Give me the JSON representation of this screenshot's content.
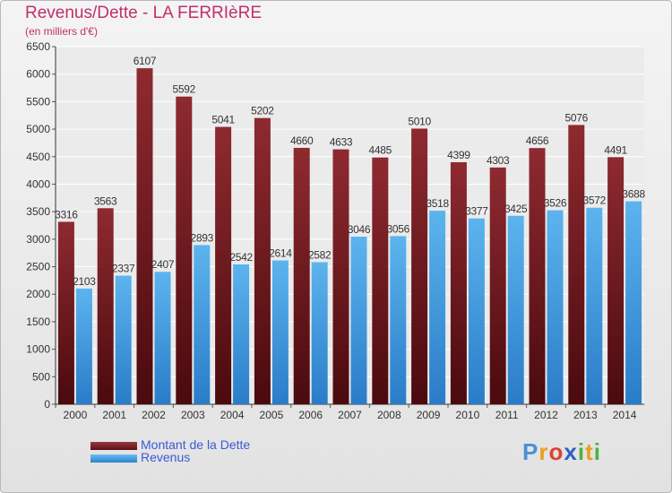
{
  "chart_data": {
    "type": "bar",
    "title": "Revenus/Dette - LA FERRIèRE",
    "subtitle": "(en milliers d'€)",
    "categories": [
      "2000",
      "2001",
      "2002",
      "2003",
      "2004",
      "2005",
      "2006",
      "2007",
      "2008",
      "2009",
      "2010",
      "2011",
      "2012",
      "2013",
      "2014"
    ],
    "series": [
      {
        "name": "Montant de la Dette",
        "color": "#7a1f24",
        "values": [
          3316,
          3563,
          6107,
          5592,
          5041,
          5202,
          4660,
          4633,
          4485,
          5010,
          4399,
          4303,
          4656,
          5076,
          4491
        ]
      },
      {
        "name": "Revenus",
        "color": "#3f9fe2",
        "values": [
          2103,
          2337,
          2407,
          2893,
          2542,
          2614,
          2582,
          3046,
          3056,
          3518,
          3377,
          3425,
          3526,
          3572,
          3688
        ]
      }
    ],
    "ylim": [
      0,
      6500
    ],
    "yticks": [
      0,
      500,
      1000,
      1500,
      2000,
      2500,
      3000,
      3500,
      4000,
      4500,
      5000,
      5500,
      6000,
      6500
    ],
    "grid": true,
    "legend_position": "bottom-left"
  },
  "logo": {
    "letters": [
      "P",
      "r",
      "o",
      "x",
      "i",
      "t",
      "i"
    ],
    "colors": [
      "#4a90d9",
      "#e8a020",
      "#e04030",
      "#2a60c8",
      "#50b040",
      "#e8a020",
      "#50b040"
    ]
  }
}
